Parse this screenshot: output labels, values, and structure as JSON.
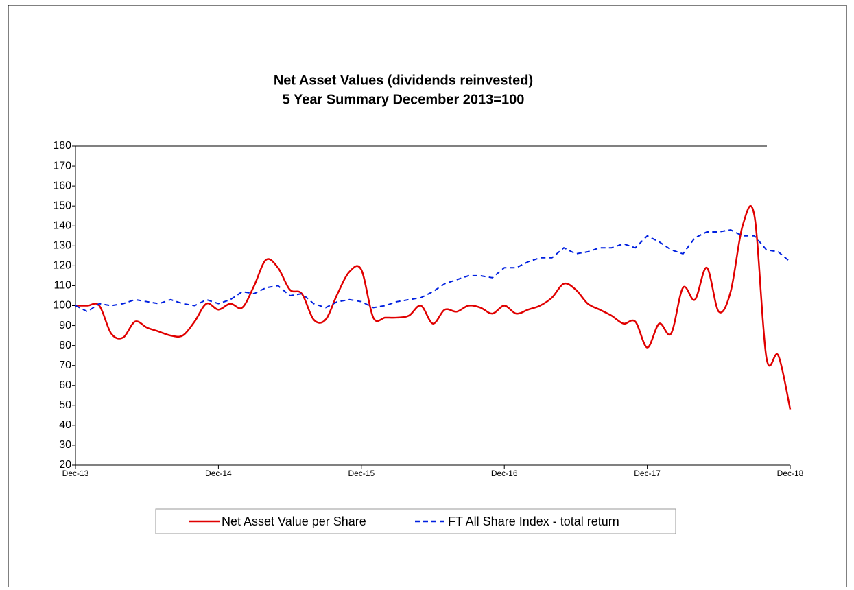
{
  "chart_data": {
    "type": "line",
    "title": "Net Asset Values (dividends reinvested)",
    "subtitle": "5 Year Summary December 2013=100",
    "categories": [
      "Dec-13",
      null,
      null,
      null,
      null,
      null,
      null,
      null,
      null,
      null,
      null,
      null,
      "Dec-14",
      null,
      null,
      null,
      null,
      null,
      null,
      null,
      null,
      null,
      null,
      null,
      "Dec-15",
      null,
      null,
      null,
      null,
      null,
      null,
      null,
      null,
      null,
      null,
      null,
      "Dec-16",
      null,
      null,
      null,
      null,
      null,
      null,
      null,
      null,
      null,
      null,
      null,
      "Dec-17",
      null,
      null,
      null,
      null,
      null,
      null,
      null,
      null,
      null,
      null,
      null,
      "Dec-18"
    ],
    "series": [
      {
        "name": "Net Asset Value per Share",
        "color": "#e00000",
        "dash": false,
        "values": [
          100,
          100,
          100,
          86,
          84,
          92,
          89,
          87,
          85,
          85,
          92,
          101,
          98,
          101,
          99,
          110,
          123,
          119,
          108,
          106,
          93,
          93,
          106,
          117,
          118,
          94,
          94,
          94,
          95,
          100,
          91,
          98,
          97,
          100,
          99,
          96,
          100,
          96,
          98,
          100,
          104,
          111,
          108,
          101,
          98,
          95,
          91,
          92,
          79,
          91,
          86,
          109,
          103,
          119,
          97,
          107,
          140,
          145,
          74,
          75,
          48
        ]
      },
      {
        "name": "FT All Share Index - total return",
        "color": "#0020e0",
        "dash": true,
        "values": [
          100,
          97,
          101,
          100,
          101,
          103,
          102,
          101,
          103,
          101,
          100,
          103,
          101,
          103,
          107,
          106,
          109,
          110,
          105,
          106,
          101,
          99,
          102,
          103,
          102,
          99,
          100,
          102,
          103,
          104,
          107,
          111,
          113,
          115,
          115,
          114,
          119,
          119,
          122,
          124,
          124,
          129,
          126,
          127,
          129,
          129,
          131,
          129,
          135,
          132,
          128,
          126,
          134,
          137,
          137,
          138,
          135,
          135,
          128,
          127,
          122
        ]
      }
    ],
    "ylim": [
      20,
      180
    ],
    "yticks": [
      20,
      30,
      40,
      50,
      60,
      70,
      80,
      90,
      100,
      110,
      120,
      130,
      140,
      150,
      160,
      170,
      180
    ]
  }
}
